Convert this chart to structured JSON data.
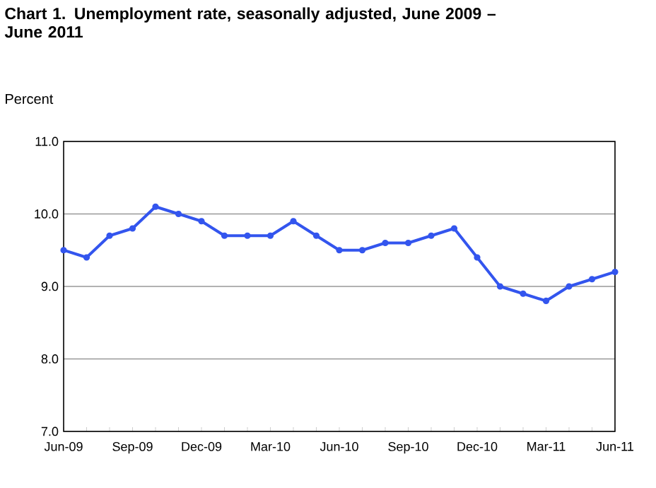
{
  "chart_data": {
    "type": "line",
    "title": "Chart 1. Unemployment rate, seasonally adjusted, June 2009 – June 2011",
    "ylabel": "Percent",
    "categories": [
      "Jun-09",
      null,
      null,
      "Sep-09",
      null,
      null,
      "Dec-09",
      null,
      null,
      "Mar-10",
      null,
      null,
      "Jun-10",
      null,
      null,
      "Sep-10",
      null,
      null,
      "Dec-10",
      null,
      null,
      "Mar-11",
      null,
      null,
      "Jun-11"
    ],
    "values": [
      9.5,
      9.4,
      9.7,
      9.8,
      10.1,
      10.0,
      9.9,
      9.7,
      9.7,
      9.7,
      9.9,
      9.7,
      9.5,
      9.5,
      9.6,
      9.6,
      9.7,
      9.8,
      9.4,
      9.0,
      8.9,
      8.8,
      9.0,
      9.1,
      9.2
    ],
    "color": "#3355ee",
    "marker": "circle",
    "line_style": "solid",
    "ylim": [
      7.0,
      11.0
    ],
    "yticks": [
      {
        "value": 7,
        "label": "7.0"
      },
      {
        "value": 8,
        "label": "8.0"
      },
      {
        "value": 9,
        "label": "9.0"
      },
      {
        "value": 10,
        "label": "10.0"
      },
      {
        "value": 11,
        "label": "11.0"
      }
    ],
    "grid": "y"
  }
}
